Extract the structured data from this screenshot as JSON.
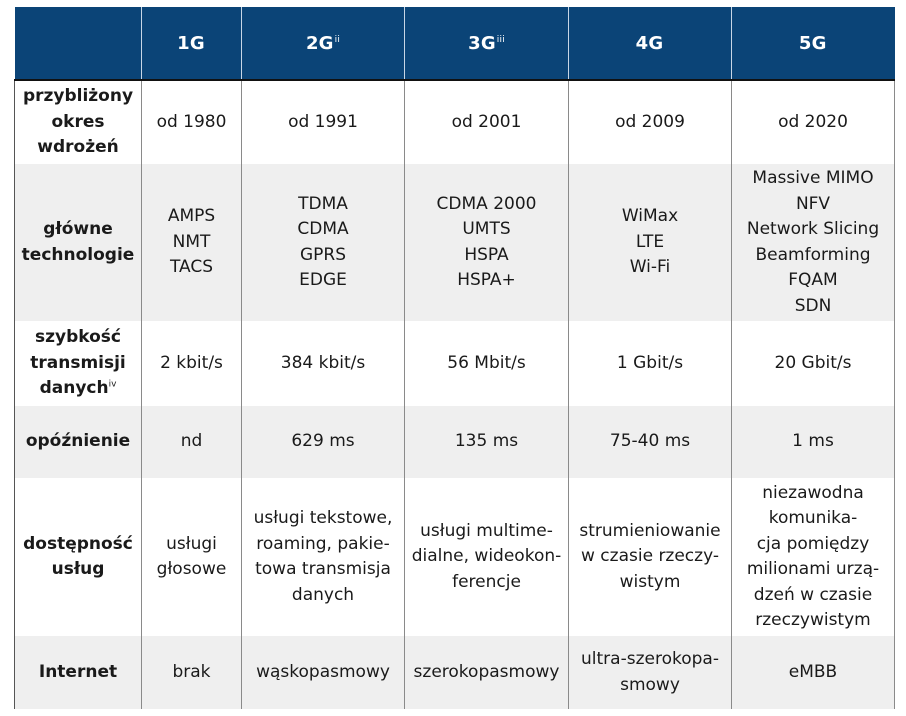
{
  "colors": {
    "header_bg": "#0b4477",
    "header_text": "#ffffff",
    "row_alt_bg": "#efefef",
    "row_bg": "#ffffff"
  },
  "table": {
    "headers": [
      {
        "label": "",
        "sup": ""
      },
      {
        "label": "1G",
        "sup": ""
      },
      {
        "label": "2G",
        "sup": "ii"
      },
      {
        "label": "3G",
        "sup": "iii"
      },
      {
        "label": "4G",
        "sup": ""
      },
      {
        "label": "5G",
        "sup": ""
      }
    ],
    "rows": [
      {
        "label": "przybliżony\nokres\nwdrożeń",
        "label_sup": "",
        "cells": [
          "od 1980",
          "od 1991",
          "od 2001",
          "od 2009",
          "od 2020"
        ]
      },
      {
        "label": "główne\ntechnologie",
        "label_sup": "",
        "cells": [
          "AMPS\nNMT\nTACS",
          "TDMA\nCDMA\nGPRS\nEDGE",
          "CDMA 2000\nUMTS\nHSPA\nHSPA+",
          "WiMax\nLTE\nWi-Fi",
          "Massive MIMO\nNFV\nNetwork Slicing\nBeamforming\nFQAM\nSDN"
        ]
      },
      {
        "label": "szybkość\ntransmisji\ndanych",
        "label_sup": "iv",
        "cells": [
          "2 kbit/s",
          "384 kbit/s",
          "56 Mbit/s",
          "1 Gbit/s",
          "20 Gbit/s"
        ]
      },
      {
        "label": "opóźnienie",
        "label_sup": "",
        "cells": [
          "nd",
          "629 ms",
          "135 ms",
          "75-40 ms",
          "1 ms"
        ]
      },
      {
        "label": "dostępność\nusług",
        "label_sup": "",
        "cells": [
          "usługi\ngłosowe",
          "usługi tekstowe,\nroaming, pakie-\ntowa transmisja\ndanych",
          "usługi multime-\ndialne, wideokon-\nferencje",
          "strumieniowanie\nw czasie rzeczy-\nwistym",
          "niezawodna\nkomunika-\ncja pomiędzy\nmilionami urzą-\ndzeń w czasie\nrzeczywistym"
        ]
      },
      {
        "label": "Internet",
        "label_sup": "",
        "cells": [
          "brak",
          "wąskopasmowy",
          "szerokopasmowy",
          "ultra-szerokopa-\nsmowy",
          "eMBB"
        ]
      }
    ]
  }
}
